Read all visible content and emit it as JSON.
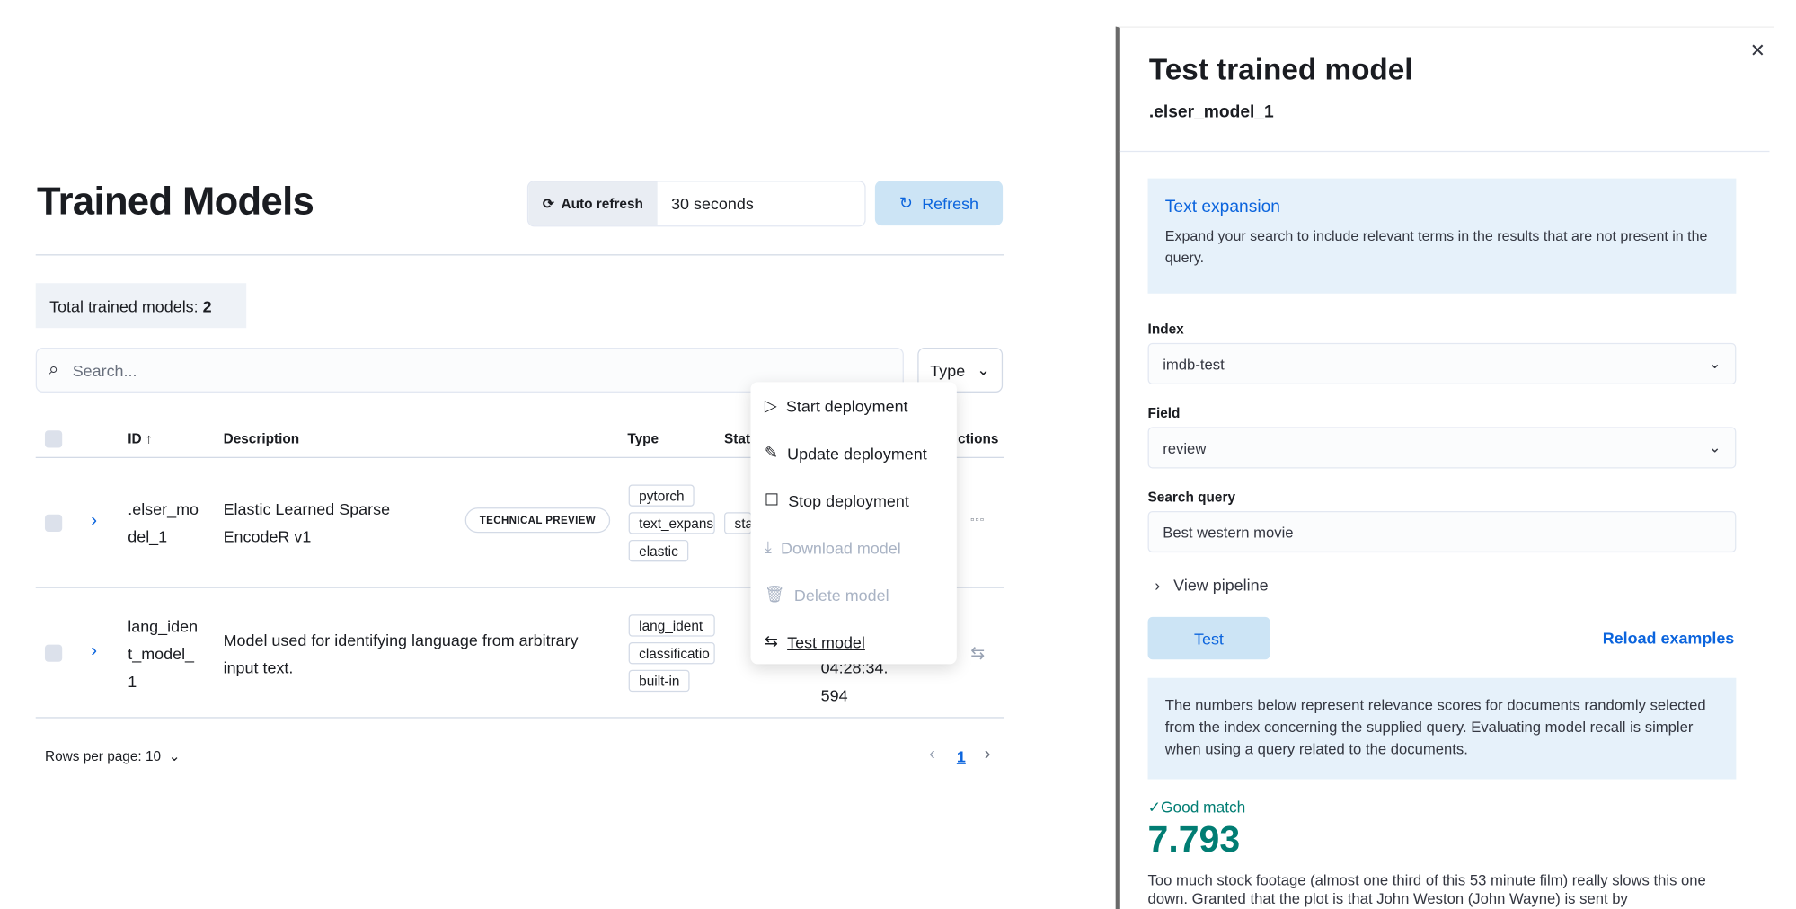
{
  "page": {
    "title": "Trained Models",
    "auto_refresh_label": "Auto refresh",
    "auto_refresh_value": "30 seconds",
    "refresh_label": "Refresh",
    "total_label": "Total trained models:",
    "total_count": "2",
    "search_placeholder": "Search...",
    "type_filter": "Type",
    "columns": [
      "ID",
      "Description",
      "Type",
      "Stat",
      "ctions"
    ],
    "rows": [
      {
        "id_lines": [
          ".elser_mo",
          "del_1"
        ],
        "description_lines": [
          "Elastic Learned Sparse",
          "EncodeR v1"
        ],
        "badge": "TECHNICAL PREVIEW",
        "types": [
          "pytorch",
          "text_expans",
          "elastic"
        ],
        "state": "sta"
      },
      {
        "id_lines": [
          "lang_iden",
          "t_model_",
          "1"
        ],
        "description_lines": [
          "Model used for identifying language from arbitrary",
          "input text."
        ],
        "types": [
          "lang_ident",
          "classificatio",
          "built-in"
        ],
        "created_lines": [
          "04:28:34.",
          "594"
        ]
      }
    ],
    "rows_per_page": "Rows per page: 10",
    "current_page": "1"
  },
  "menu": {
    "items": [
      {
        "label": "Start deployment",
        "icon": "play-icon",
        "disabled": false
      },
      {
        "label": "Update deployment",
        "icon": "pencil-icon",
        "disabled": false
      },
      {
        "label": "Stop deployment",
        "icon": "stop-icon",
        "disabled": false
      },
      {
        "label": "Download model",
        "icon": "download-icon",
        "disabled": true
      },
      {
        "label": "Delete model",
        "icon": "trash-icon",
        "disabled": true
      },
      {
        "label": "Test model",
        "icon": "test-icon",
        "disabled": false
      }
    ]
  },
  "flyout": {
    "title": "Test trained model",
    "model": ".elser_model_1",
    "callout_title": "Text expansion",
    "callout_text": "Expand your search to include relevant terms in the results that are not present in the query.",
    "index_label": "Index",
    "index_value": "imdb-test",
    "field_label": "Field",
    "field_value": "review",
    "query_label": "Search query",
    "query_value": "Best western movie",
    "view_pipeline": "View pipeline",
    "test_label": "Test",
    "reload_label": "Reload examples",
    "info_text": "The numbers below represent relevance scores for documents randomly selected from the index concerning the supplied query. Evaluating model recall is simpler when using a query related to the documents.",
    "match_label": "Good match",
    "score": "7.793",
    "result_text": "Too much stock footage (almost one third of this 53 minute film) really slows this one down. Granted that the plot is that John Weston (John Wayne) is sent by"
  },
  "colors": {
    "accent": "#0b64dd",
    "success": "#017d73",
    "callout": "#e6f1fa"
  }
}
